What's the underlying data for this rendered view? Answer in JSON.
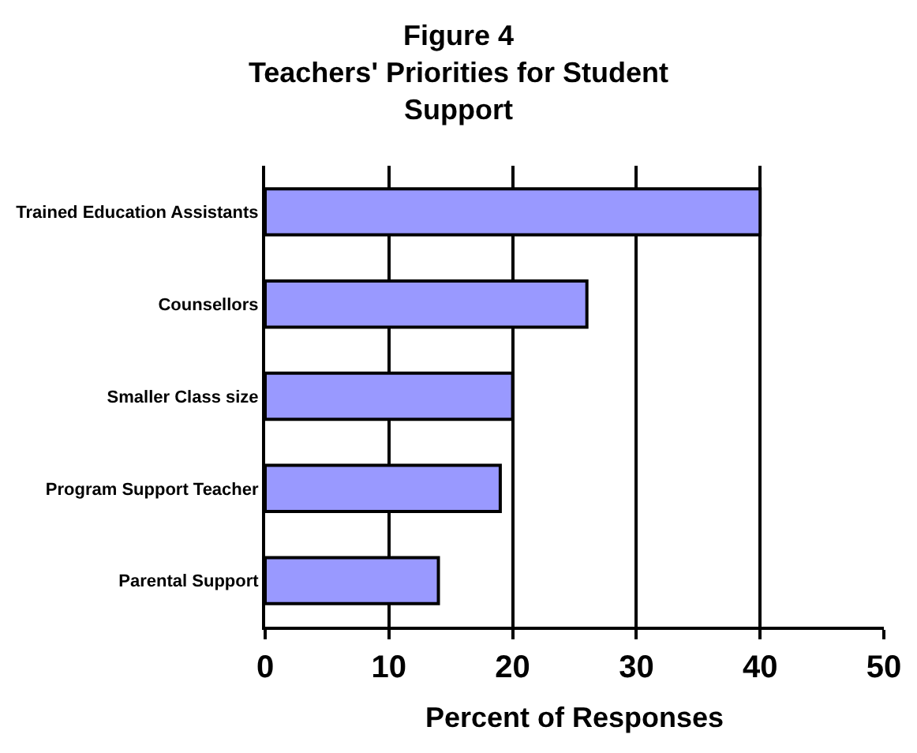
{
  "chart_data": {
    "type": "bar",
    "orientation": "horizontal",
    "title": "Figure 4\nTeachers' Priorities for Student\nSupport",
    "xlabel": "Percent of Responses",
    "categories": [
      "Trained Education Assistants",
      "Counsellors",
      "Smaller Class size",
      "Program Support Teacher",
      "Parental Support"
    ],
    "values": [
      40,
      26,
      20,
      19,
      14
    ],
    "color": "#9999ff",
    "xlim": [
      0,
      50
    ],
    "xticks": [
      0,
      10,
      20,
      30,
      40,
      50
    ],
    "grid": "x"
  }
}
